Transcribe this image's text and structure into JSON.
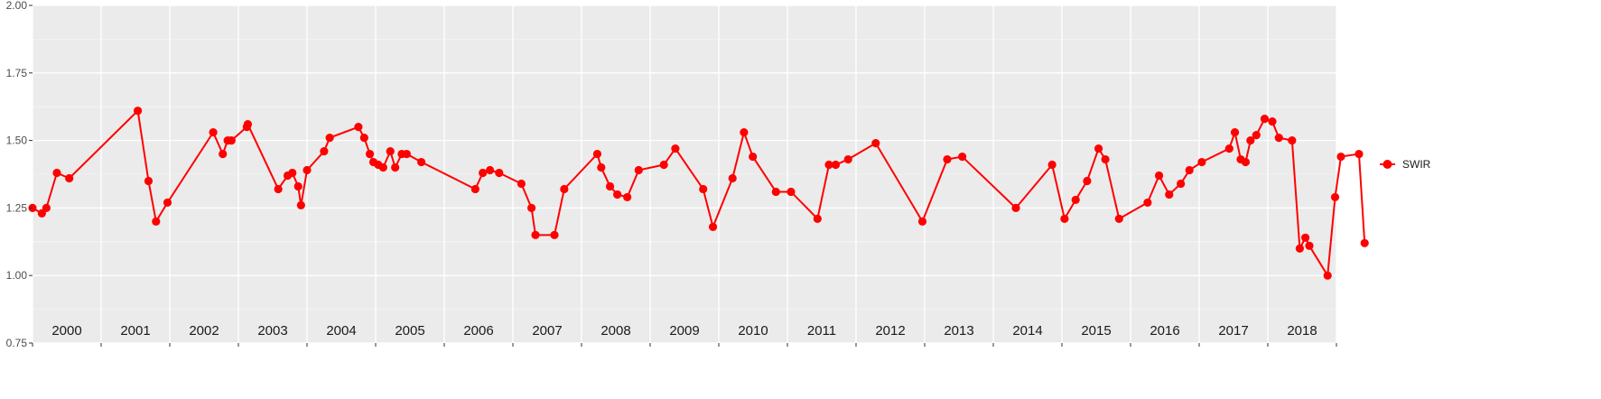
{
  "chart_data": {
    "type": "line",
    "ylim": [
      0.75,
      2.0
    ],
    "yticks": [
      0.75,
      1.0,
      1.25,
      1.5,
      1.75,
      2.0
    ],
    "ytick_labels": [
      "0.75",
      "1.00",
      "1.25",
      "1.50",
      "1.75",
      "2.00"
    ],
    "x_range": [
      "2000-01-01",
      "2019-01-01"
    ],
    "year_labels": [
      "2000",
      "2001",
      "2002",
      "2003",
      "2004",
      "2005",
      "2006",
      "2007",
      "2008",
      "2009",
      "2010",
      "2011",
      "2012",
      "2013",
      "2014",
      "2015",
      "2016",
      "2017",
      "2018"
    ],
    "grid": true,
    "legend_position": "right",
    "series": [
      {
        "name": "SWIR",
        "color": "#ff0000",
        "points": [
          [
            "2000-01-01",
            1.25
          ],
          [
            "2000-02-20",
            1.23
          ],
          [
            "2000-03-15",
            1.25
          ],
          [
            "2000-05-10",
            1.38
          ],
          [
            "2000-07-15",
            1.36
          ],
          [
            "2001-07-15",
            1.61
          ],
          [
            "2001-09-10",
            1.35
          ],
          [
            "2001-10-20",
            1.2
          ],
          [
            "2001-12-20",
            1.27
          ],
          [
            "2002-08-20",
            1.53
          ],
          [
            "2002-10-10",
            1.45
          ],
          [
            "2002-11-05",
            1.5
          ],
          [
            "2002-11-25",
            1.5
          ],
          [
            "2003-02-15",
            1.55
          ],
          [
            "2003-02-20",
            1.56
          ],
          [
            "2003-08-01",
            1.32
          ],
          [
            "2003-09-20",
            1.37
          ],
          [
            "2003-10-15",
            1.38
          ],
          [
            "2003-11-15",
            1.33
          ],
          [
            "2003-11-30",
            1.26
          ],
          [
            "2004-01-01",
            1.39
          ],
          [
            "2004-04-01",
            1.46
          ],
          [
            "2004-05-01",
            1.51
          ],
          [
            "2004-10-01",
            1.55
          ],
          [
            "2004-11-01",
            1.51
          ],
          [
            "2004-12-01",
            1.45
          ],
          [
            "2004-12-20",
            1.42
          ],
          [
            "2005-01-15",
            1.41
          ],
          [
            "2005-02-10",
            1.4
          ],
          [
            "2005-03-20",
            1.46
          ],
          [
            "2005-04-15",
            1.4
          ],
          [
            "2005-05-20",
            1.45
          ],
          [
            "2005-06-15",
            1.45
          ],
          [
            "2005-09-01",
            1.42
          ],
          [
            "2006-06-15",
            1.32
          ],
          [
            "2006-07-25",
            1.38
          ],
          [
            "2006-09-01",
            1.39
          ],
          [
            "2006-10-20",
            1.38
          ],
          [
            "2007-02-15",
            1.34
          ],
          [
            "2007-04-10",
            1.25
          ],
          [
            "2007-05-01",
            1.15
          ],
          [
            "2007-08-10",
            1.15
          ],
          [
            "2007-10-01",
            1.32
          ],
          [
            "2008-03-25",
            1.45
          ],
          [
            "2008-04-15",
            1.4
          ],
          [
            "2008-06-01",
            1.33
          ],
          [
            "2008-07-10",
            1.3
          ],
          [
            "2008-09-01",
            1.29
          ],
          [
            "2008-11-01",
            1.39
          ],
          [
            "2009-03-15",
            1.41
          ],
          [
            "2009-05-15",
            1.47
          ],
          [
            "2009-10-10",
            1.32
          ],
          [
            "2009-12-01",
            1.18
          ],
          [
            "2010-03-15",
            1.36
          ],
          [
            "2010-05-15",
            1.53
          ],
          [
            "2010-07-01",
            1.44
          ],
          [
            "2010-11-01",
            1.31
          ],
          [
            "2011-01-20",
            1.31
          ],
          [
            "2011-06-10",
            1.21
          ],
          [
            "2011-08-10",
            1.41
          ],
          [
            "2011-09-15",
            1.41
          ],
          [
            "2011-11-20",
            1.43
          ],
          [
            "2012-04-15",
            1.49
          ],
          [
            "2012-12-20",
            1.2
          ],
          [
            "2013-05-01",
            1.43
          ],
          [
            "2013-07-20",
            1.44
          ],
          [
            "2014-05-01",
            1.25
          ],
          [
            "2014-11-10",
            1.41
          ],
          [
            "2015-01-15",
            1.21
          ],
          [
            "2015-03-15",
            1.28
          ],
          [
            "2015-05-15",
            1.35
          ],
          [
            "2015-07-15",
            1.47
          ],
          [
            "2015-08-20",
            1.43
          ],
          [
            "2015-11-01",
            1.21
          ],
          [
            "2016-04-01",
            1.27
          ],
          [
            "2016-06-01",
            1.37
          ],
          [
            "2016-07-25",
            1.3
          ],
          [
            "2016-09-25",
            1.34
          ],
          [
            "2016-11-10",
            1.39
          ],
          [
            "2017-01-15",
            1.42
          ],
          [
            "2017-06-10",
            1.47
          ],
          [
            "2017-07-10",
            1.53
          ],
          [
            "2017-08-10",
            1.43
          ],
          [
            "2017-09-05",
            1.42
          ],
          [
            "2017-10-01",
            1.5
          ],
          [
            "2017-11-01",
            1.52
          ],
          [
            "2017-12-15",
            1.58
          ],
          [
            "2018-01-25",
            1.57
          ],
          [
            "2018-03-01",
            1.51
          ],
          [
            "2018-05-10",
            1.5
          ],
          [
            "2018-06-20",
            1.1
          ],
          [
            "2018-07-20",
            1.14
          ],
          [
            "2018-08-10",
            1.11
          ],
          [
            "2018-11-15",
            1.0
          ],
          [
            "2018-12-25",
            1.29
          ],
          [
            "2019-01-25",
            1.44
          ],
          [
            "2019-05-01",
            1.45
          ],
          [
            "2019-05-31",
            1.12
          ]
        ]
      }
    ]
  }
}
